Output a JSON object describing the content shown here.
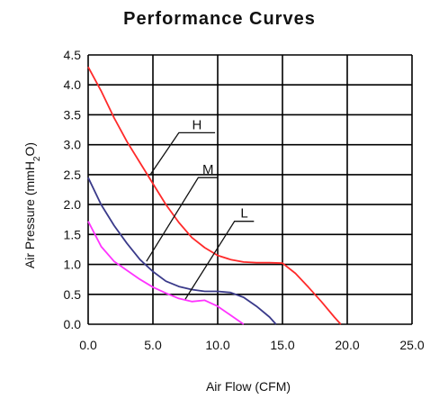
{
  "chart_data": {
    "type": "line",
    "title": "Performance Curves",
    "xlabel": "Air Flow (CFM)",
    "ylabel": "Air Pressure (mmH2O)",
    "ylabel_parts": {
      "main": "Air Pressure (mmH",
      "sub": "2",
      "end": "O)"
    },
    "xlim": [
      0,
      25
    ],
    "ylim": [
      0,
      4.5
    ],
    "x_ticks": [
      "0.0",
      "5.0",
      "10.0",
      "15.0",
      "20.0",
      "25.0"
    ],
    "y_ticks": [
      "0.0",
      "0.5",
      "1.0",
      "1.5",
      "2.0",
      "2.5",
      "3.0",
      "3.5",
      "4.0",
      "4.5"
    ],
    "grid": true,
    "series": [
      {
        "name": "H",
        "color": "#ff2a2a",
        "x": [
          0,
          1,
          2,
          3,
          4,
          5,
          6,
          7,
          8,
          9,
          10,
          11,
          12,
          13,
          14,
          15,
          16,
          17,
          18,
          19,
          19.5
        ],
        "y": [
          4.3,
          3.9,
          3.45,
          3.05,
          2.7,
          2.35,
          2.0,
          1.7,
          1.45,
          1.28,
          1.15,
          1.08,
          1.04,
          1.03,
          1.03,
          1.02,
          0.85,
          0.62,
          0.38,
          0.12,
          0.0
        ]
      },
      {
        "name": "M",
        "color": "#3a3a8a",
        "x": [
          0,
          1,
          2,
          3,
          4,
          5,
          6,
          7,
          8,
          9,
          10,
          11,
          12,
          13,
          14,
          14.5
        ],
        "y": [
          2.45,
          2.0,
          1.65,
          1.35,
          1.08,
          0.88,
          0.72,
          0.63,
          0.58,
          0.55,
          0.55,
          0.53,
          0.45,
          0.3,
          0.12,
          0.0
        ]
      },
      {
        "name": "L",
        "color": "#ff33ff",
        "x": [
          0,
          1,
          2,
          3,
          4,
          5,
          6,
          7,
          8,
          9,
          10,
          11,
          12
        ],
        "y": [
          1.72,
          1.3,
          1.05,
          0.9,
          0.75,
          0.62,
          0.52,
          0.43,
          0.38,
          0.4,
          0.3,
          0.15,
          0.0
        ]
      }
    ],
    "annotations": [
      {
        "label": "H",
        "series": "H",
        "anchor": [
          4.8,
          2.5
        ],
        "elbow": [
          7,
          3.2
        ],
        "end": [
          9.8,
          3.2
        ]
      },
      {
        "label": "M",
        "series": "M",
        "anchor": [
          4.5,
          1.05
        ],
        "elbow": [
          8.5,
          2.45
        ],
        "end": [
          10,
          2.45
        ]
      },
      {
        "label": "L",
        "series": "L",
        "anchor": [
          7.5,
          0.42
        ],
        "elbow": [
          11.3,
          1.72
        ],
        "end": [
          12.8,
          1.72
        ]
      }
    ]
  }
}
